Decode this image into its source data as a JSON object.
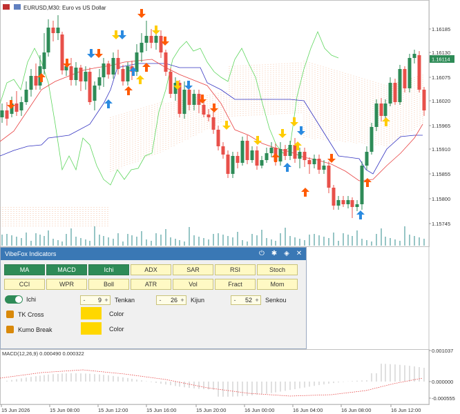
{
  "chart": {
    "title": "EURUSD,M30:  Euro vs US Dollar",
    "current_price": "1.16114",
    "price_labels": [
      "1.16185",
      "1.16130",
      "1.16075",
      "1.16020",
      "1.15965",
      "1.15910",
      "1.15855",
      "1.15800",
      "1.15745"
    ],
    "time_labels": [
      "15 Jun 2026",
      "15 Jun 08:00",
      "15 Jun 12:00",
      "15 Jun 16:00",
      "15 Jun 20:00",
      "16 Jun 00:00",
      "16 Jun 04:00",
      "16 Jun 08:00",
      "16 Jun 12:00"
    ],
    "colors": {
      "bull": "#2e8b57",
      "bear": "#e8504a",
      "tenkan": "#e84040",
      "kijun": "#3030c0",
      "chikou": "#5cd65c",
      "kumo": "#f0a070",
      "arrow_up_orange": "#ff5a00",
      "arrow_down_orange": "#ff5a00",
      "arrow_up_blue": "#2a8ae0",
      "arrow_down_blue": "#2a8ae0",
      "arrow_yellow": "#ffcc00",
      "current_price_bg": "#2e8b57"
    }
  },
  "panel": {
    "title": "VibeFox Indicators",
    "icons": [
      "power-icon",
      "gear-icon",
      "diamond-icon",
      "close-icon"
    ],
    "tabs_row1": [
      {
        "label": "MA",
        "active": true
      },
      {
        "label": "MACD",
        "active": true
      },
      {
        "label": "Ichi",
        "active": true
      },
      {
        "label": "ADX",
        "active": false
      },
      {
        "label": "SAR",
        "active": false
      },
      {
        "label": "RSI",
        "active": false
      },
      {
        "label": "Stoch",
        "active": false
      }
    ],
    "tabs_row2": [
      {
        "label": "CCI",
        "active": false
      },
      {
        "label": "WPR",
        "active": false
      },
      {
        "label": "Boll",
        "active": false
      },
      {
        "label": "ATR",
        "active": false
      },
      {
        "label": "Vol",
        "active": false
      },
      {
        "label": "Fract",
        "active": false
      },
      {
        "label": "Mom",
        "active": false
      }
    ],
    "ichi_toggle_label": "Ichi",
    "tenkan": {
      "value": "9",
      "label": "Tenkan"
    },
    "kijun": {
      "value": "26",
      "label": "Kijun"
    },
    "senkou": {
      "value": "52",
      "label": "Senkou"
    },
    "tk_cross_label": "TK Cross",
    "kumo_break_label": "Kumo Break",
    "color_label_1": "Color",
    "color_label_2": "Color",
    "swatch_color": "#ffd700"
  },
  "macd": {
    "label": "MACD(12,26,9) 0.000490 0.000322",
    "scale_labels": [
      "0.001037",
      "0.000000",
      "-0.000555"
    ]
  }
}
